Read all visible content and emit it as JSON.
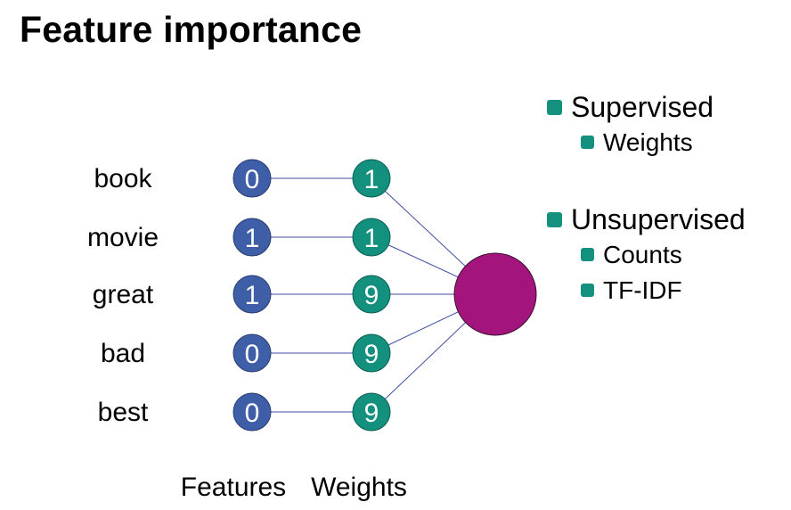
{
  "title": "Feature importance",
  "features": [
    {
      "word": "book",
      "feature": "0",
      "weight": "1"
    },
    {
      "word": "movie",
      "feature": "1",
      "weight": "1"
    },
    {
      "word": "great",
      "feature": "1",
      "weight": "9"
    },
    {
      "word": "bad",
      "feature": "0",
      "weight": "9"
    },
    {
      "word": "best",
      "feature": "0",
      "weight": "9"
    }
  ],
  "column_labels": {
    "features": "Features",
    "weights": "Weights"
  },
  "legend": {
    "supervised": {
      "label": "Supervised",
      "items": [
        "Weights"
      ]
    },
    "unsupervised": {
      "label": "Unsupervised",
      "items": [
        "Counts",
        "TF-IDF"
      ]
    }
  },
  "colors": {
    "feature_node": "#3f5ea8",
    "weight_node": "#14907e",
    "output_node": "#a3147c",
    "edge": "#3f4fa0",
    "bullet": "#14907e"
  }
}
